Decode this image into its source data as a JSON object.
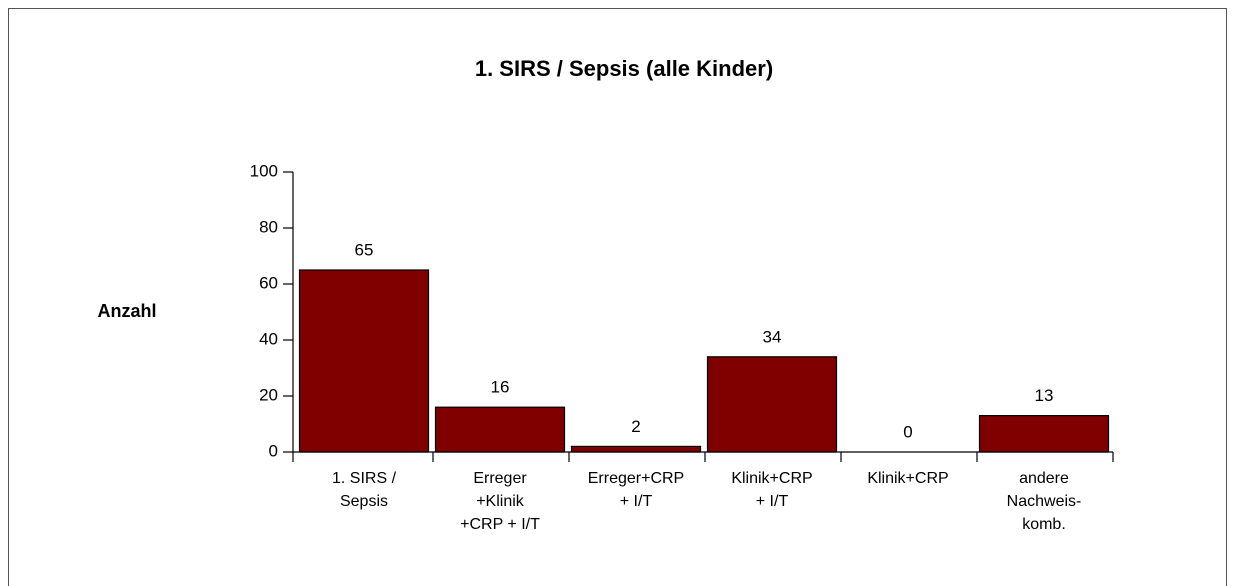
{
  "chart_data": {
    "type": "bar",
    "title": "1. SIRS / Sepsis (alle Kinder)",
    "y_label": "Anzahl",
    "categories": [
      [
        "1. SIRS /",
        "Sepsis"
      ],
      [
        "Erreger",
        "+Klinik",
        "+CRP + I/T"
      ],
      [
        "Erreger+CRP",
        "+ I/T"
      ],
      [
        "Klinik+CRP",
        "+ I/T"
      ],
      [
        "Klinik+CRP"
      ],
      [
        "andere",
        "Nachweis-",
        "komb."
      ]
    ],
    "values": [
      65,
      16,
      2,
      34,
      0,
      13
    ],
    "color": "#800000",
    "ylim": [
      0,
      100
    ],
    "yticks": [
      0,
      20,
      40,
      60,
      80,
      100
    ],
    "grid": false
  }
}
